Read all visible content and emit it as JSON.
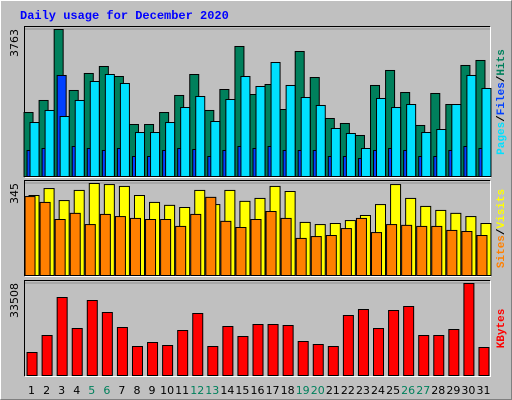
{
  "title": "Daily usage for December 2020",
  "chart_data": [
    {
      "type": "bar",
      "legend_separator": "/",
      "ylim": [
        0,
        3763
      ],
      "yticks": [
        3763
      ],
      "series": [
        {
          "name": "Hits",
          "color": "#00805c",
          "values": [
            1638,
            1946,
            3763,
            2202,
            2637,
            2816,
            2560,
            1331,
            1331,
            1638,
            2074,
            2611,
            1690,
            2227,
            3328,
            2099,
            2355,
            1715,
            3200,
            2534,
            1485,
            1357,
            1050,
            2330,
            2714,
            2150,
            1306,
            2125,
            1843,
            2842,
            2970
          ]
        },
        {
          "name": "Files",
          "color": "#0040ff",
          "values": [
            666,
            717,
            2586,
            768,
            717,
            666,
            717,
            512,
            512,
            666,
            717,
            691,
            512,
            666,
            768,
            717,
            768,
            666,
            666,
            666,
            512,
            512,
            460,
            666,
            717,
            666,
            512,
            512,
            666,
            768,
            717
          ]
        },
        {
          "name": "Pages",
          "color": "#00e0ff",
          "values": [
            1382,
            1690,
            1536,
            1946,
            2432,
            2611,
            2381,
            1126,
            1126,
            1382,
            1766,
            2048,
            1408,
            1971,
            2560,
            2304,
            2918,
            2330,
            2022,
            1818,
            1229,
            1101,
            717,
            1997,
            1766,
            1843,
            1126,
            1203,
            1843,
            2586,
            2253
          ]
        }
      ]
    },
    {
      "type": "bar",
      "legend_separator": "/",
      "ylim": [
        0,
        345
      ],
      "yticks": [
        345
      ],
      "series": [
        {
          "name": "Visits",
          "color": "#ffff00",
          "values": [
            300,
            326,
            281,
            319,
            345,
            341,
            334,
            300,
            274,
            263,
            255,
            319,
            266,
            319,
            278,
            289,
            334,
            315,
            199,
            191,
            195,
            206,
            225,
            266,
            341,
            289,
            259,
            244,
            233,
            221,
            195
          ]
        },
        {
          "name": "Sites",
          "color": "#ff8000",
          "values": [
            296,
            274,
            210,
            233,
            191,
            229,
            221,
            214,
            210,
            210,
            184,
            229,
            293,
            203,
            180,
            210,
            240,
            214,
            139,
            146,
            150,
            176,
            214,
            161,
            191,
            188,
            184,
            184,
            169,
            165,
            150
          ]
        }
      ]
    },
    {
      "type": "bar",
      "ylim": [
        0,
        33508
      ],
      "yticks": [
        33508
      ],
      "series": [
        {
          "name": "KBytes",
          "color": "#ff0000",
          "values": [
            8377,
            14568,
            28408,
            17118,
            27315,
            22945,
            17482,
            10562,
            12019,
            10927,
            16389,
            22581,
            10562,
            17847,
            14204,
            18575,
            18575,
            18211,
            12383,
            11291,
            10562,
            21853,
            24038,
            17118,
            23674,
            25131,
            14568,
            14568,
            16754,
            33508,
            10198
          ]
        }
      ],
      "categories": [
        1,
        2,
        3,
        4,
        5,
        6,
        7,
        8,
        9,
        10,
        11,
        12,
        13,
        14,
        15,
        16,
        17,
        18,
        19,
        20,
        21,
        22,
        23,
        24,
        25,
        26,
        27,
        28,
        29,
        30,
        31
      ],
      "category_colors": [
        "#000000",
        "#000000",
        "#000000",
        "#000000",
        "#00805c",
        "#00805c",
        "#000000",
        "#000000",
        "#000000",
        "#000000",
        "#000000",
        "#00805c",
        "#00805c",
        "#000000",
        "#000000",
        "#000000",
        "#000000",
        "#000000",
        "#00805c",
        "#00805c",
        "#000000",
        "#000000",
        "#000000",
        "#000000",
        "#000000",
        "#00805c",
        "#00805c",
        "#000000",
        "#000000",
        "#000000",
        "#000000"
      ]
    }
  ]
}
